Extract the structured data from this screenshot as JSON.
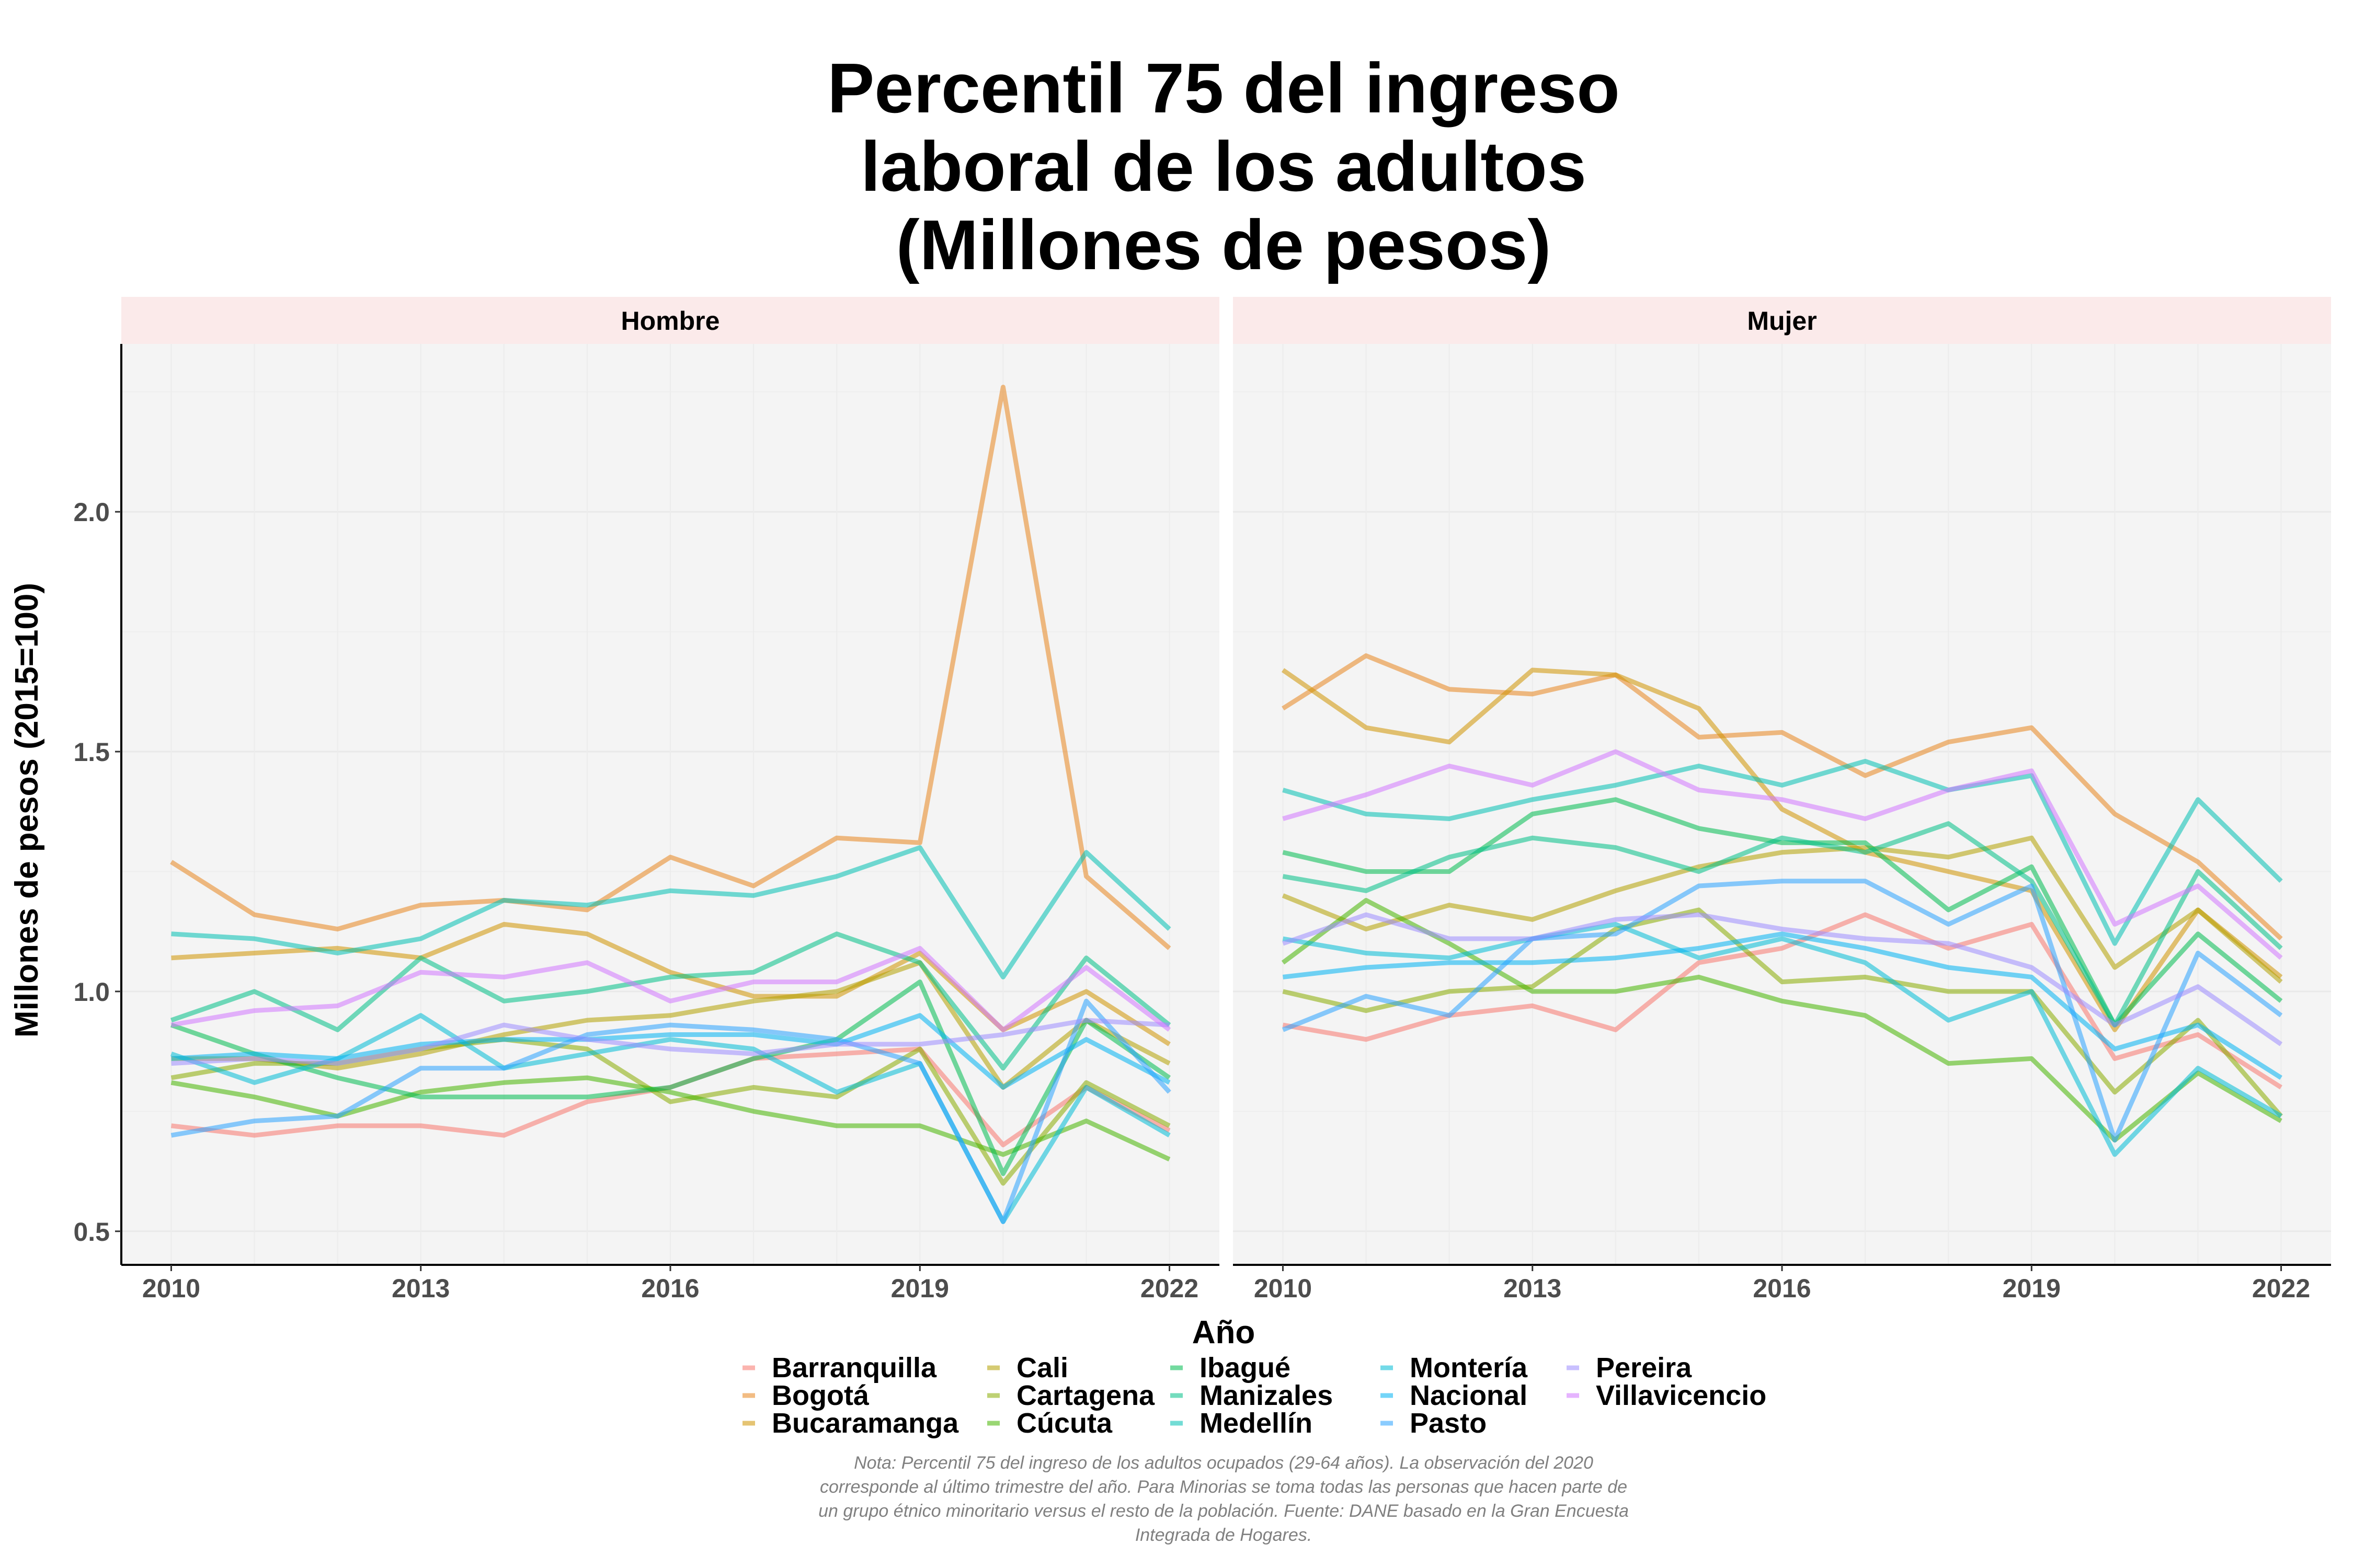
{
  "chart_data": {
    "type": "line",
    "title_lines": [
      "Percentil 75 del ingreso",
      "laboral de los adultos",
      "(Millones de pesos)"
    ],
    "xlabel": "Año",
    "ylabel": "Millones de pesos (2015=100)",
    "xlim": [
      2009.4,
      2022.6
    ],
    "ylim": [
      0.43,
      2.35
    ],
    "x_ticks": [
      2010,
      2013,
      2016,
      2019,
      2022
    ],
    "y_ticks": [
      0.5,
      1.0,
      1.5,
      2.0
    ],
    "y_tick_labels": [
      "0.5",
      "1.0",
      "1.5",
      "2.0"
    ],
    "x": [
      2010,
      2011,
      2012,
      2013,
      2014,
      2015,
      2016,
      2017,
      2018,
      2019,
      2020,
      2021,
      2022
    ],
    "legend_title": "",
    "legend_placement": "bottom",
    "note_lines": [
      "Nota: Percentil 75 del ingreso de los adultos ocupados (29-64 años). La observación del 2020",
      "corresponde al último trimestre del año. Para Minorias se toma todas las personas que hacen parte de",
      "un grupo étnico minoritario versus el resto de la población. Fuente: DANE basado en la Gran Encuesta",
      "Integrada de Hogares."
    ],
    "cities": [
      {
        "name": "Barranquilla",
        "color": "#F8766D"
      },
      {
        "name": "Bogotá",
        "color": "#E7851E"
      },
      {
        "name": "Bucaramanga",
        "color": "#D09400"
      },
      {
        "name": "Cali",
        "color": "#B2A100"
      },
      {
        "name": "Cartagena",
        "color": "#89AC00"
      },
      {
        "name": "Cúcuta",
        "color": "#45B500"
      },
      {
        "name": "Ibagué",
        "color": "#00BC51"
      },
      {
        "name": "Manizales",
        "color": "#00C087"
      },
      {
        "name": "Medellín",
        "color": "#00C0B2"
      },
      {
        "name": "Montería",
        "color": "#00BCD6"
      },
      {
        "name": "Nacional",
        "color": "#00B3F2"
      },
      {
        "name": "Pasto",
        "color": "#29A3FF"
      },
      {
        "name": "Pereira",
        "color": "#9C8DFF"
      },
      {
        "name": "Villavicencio",
        "color": "#D277FF"
      }
    ],
    "panels": [
      {
        "name": "Hombre",
        "series": [
          {
            "name": "Barranquilla",
            "values": [
              0.72,
              0.7,
              0.72,
              0.72,
              0.7,
              0.77,
              0.8,
              0.86,
              0.87,
              0.88,
              0.68,
              0.8,
              0.71
            ]
          },
          {
            "name": "Bogotá",
            "values": [
              1.27,
              1.16,
              1.13,
              1.18,
              1.19,
              1.17,
              1.28,
              1.22,
              1.32,
              1.31,
              2.26,
              1.24,
              1.09
            ]
          },
          {
            "name": "Bucaramanga",
            "values": [
              1.07,
              1.08,
              1.09,
              1.07,
              1.14,
              1.12,
              1.04,
              0.99,
              0.99,
              1.08,
              0.92,
              1.0,
              0.89
            ]
          },
          {
            "name": "Cali",
            "values": [
              0.86,
              0.86,
              0.84,
              0.87,
              0.91,
              0.94,
              0.95,
              0.98,
              1.0,
              1.06,
              0.8,
              0.94,
              0.85
            ]
          },
          {
            "name": "Cartagena",
            "values": [
              0.82,
              0.85,
              0.85,
              0.88,
              0.9,
              0.88,
              0.77,
              0.8,
              0.78,
              0.88,
              0.6,
              0.81,
              0.72
            ]
          },
          {
            "name": "Cúcuta",
            "values": [
              0.81,
              0.78,
              0.74,
              0.79,
              0.81,
              0.82,
              0.79,
              0.75,
              0.72,
              0.72,
              0.66,
              0.73,
              0.65
            ]
          },
          {
            "name": "Ibagué",
            "values": [
              0.93,
              0.87,
              0.82,
              0.78,
              0.78,
              0.78,
              0.8,
              0.86,
              0.9,
              1.02,
              0.62,
              0.94,
              0.82
            ]
          },
          {
            "name": "Manizales",
            "values": [
              0.94,
              1.0,
              0.92,
              1.07,
              0.98,
              1.0,
              1.03,
              1.04,
              1.12,
              1.06,
              0.84,
              1.07,
              0.93
            ]
          },
          {
            "name": "Medellín",
            "values": [
              1.12,
              1.11,
              1.08,
              1.11,
              1.19,
              1.18,
              1.21,
              1.2,
              1.24,
              1.3,
              1.03,
              1.29,
              1.13
            ]
          },
          {
            "name": "Montería",
            "values": [
              0.87,
              0.81,
              0.86,
              0.95,
              0.84,
              0.87,
              0.9,
              0.88,
              0.79,
              0.85,
              0.52,
              0.8,
              0.7
            ]
          },
          {
            "name": "Nacional",
            "values": [
              0.86,
              0.87,
              0.86,
              0.89,
              0.9,
              0.9,
              0.91,
              0.91,
              0.89,
              0.95,
              0.8,
              0.9,
              0.81
            ]
          },
          {
            "name": "Pasto",
            "values": [
              0.7,
              0.73,
              0.74,
              0.84,
              0.84,
              0.91,
              0.93,
              0.92,
              0.9,
              0.85,
              0.52,
              0.98,
              0.79
            ]
          },
          {
            "name": "Pereira",
            "values": [
              0.85,
              0.86,
              0.85,
              0.88,
              0.93,
              0.9,
              0.88,
              0.87,
              0.89,
              0.89,
              0.91,
              0.94,
              0.93
            ]
          },
          {
            "name": "Villavicencio",
            "values": [
              0.93,
              0.96,
              0.97,
              1.04,
              1.03,
              1.06,
              0.98,
              1.02,
              1.02,
              1.09,
              0.92,
              1.05,
              0.92
            ]
          }
        ]
      },
      {
        "name": "Mujer",
        "series": [
          {
            "name": "Barranquilla",
            "values": [
              0.93,
              0.9,
              0.95,
              0.97,
              0.92,
              1.06,
              1.09,
              1.16,
              1.09,
              1.14,
              0.86,
              0.91,
              0.8
            ]
          },
          {
            "name": "Bogotá",
            "values": [
              1.59,
              1.7,
              1.63,
              1.62,
              1.66,
              1.53,
              1.54,
              1.45,
              1.52,
              1.55,
              1.37,
              1.27,
              1.11
            ]
          },
          {
            "name": "Bucaramanga",
            "values": [
              1.67,
              1.55,
              1.52,
              1.67,
              1.66,
              1.59,
              1.38,
              1.29,
              1.25,
              1.21,
              0.92,
              1.17,
              1.03
            ]
          },
          {
            "name": "Cali",
            "values": [
              1.2,
              1.13,
              1.18,
              1.15,
              1.21,
              1.26,
              1.29,
              1.3,
              1.28,
              1.32,
              1.05,
              1.17,
              1.02
            ]
          },
          {
            "name": "Cartagena",
            "values": [
              1.0,
              0.96,
              1.0,
              1.01,
              1.13,
              1.17,
              1.02,
              1.03,
              1.0,
              1.0,
              0.79,
              0.94,
              0.74
            ]
          },
          {
            "name": "Cúcuta",
            "values": [
              1.06,
              1.19,
              1.1,
              1.0,
              1.0,
              1.03,
              0.98,
              0.95,
              0.85,
              0.86,
              0.69,
              0.83,
              0.73
            ]
          },
          {
            "name": "Ibagué",
            "values": [
              1.29,
              1.25,
              1.25,
              1.37,
              1.4,
              1.34,
              1.31,
              1.31,
              1.17,
              1.26,
              0.93,
              1.12,
              0.98
            ]
          },
          {
            "name": "Manizales",
            "values": [
              1.24,
              1.21,
              1.28,
              1.32,
              1.3,
              1.25,
              1.32,
              1.29,
              1.35,
              1.23,
              0.93,
              1.25,
              1.09
            ]
          },
          {
            "name": "Medellín",
            "values": [
              1.42,
              1.37,
              1.36,
              1.4,
              1.43,
              1.47,
              1.43,
              1.48,
              1.42,
              1.45,
              1.1,
              1.4,
              1.23
            ]
          },
          {
            "name": "Montería",
            "values": [
              1.11,
              1.08,
              1.07,
              1.11,
              1.14,
              1.07,
              1.11,
              1.06,
              0.94,
              1.0,
              0.66,
              0.84,
              0.74
            ]
          },
          {
            "name": "Nacional",
            "values": [
              1.03,
              1.05,
              1.06,
              1.06,
              1.07,
              1.09,
              1.12,
              1.09,
              1.05,
              1.03,
              0.88,
              0.93,
              0.82
            ]
          },
          {
            "name": "Pasto",
            "values": [
              0.92,
              0.99,
              0.95,
              1.11,
              1.12,
              1.22,
              1.23,
              1.23,
              1.14,
              1.22,
              0.69,
              1.08,
              0.95
            ]
          },
          {
            "name": "Pereira",
            "values": [
              1.1,
              1.16,
              1.11,
              1.11,
              1.15,
              1.16,
              1.13,
              1.11,
              1.1,
              1.05,
              0.93,
              1.01,
              0.89
            ]
          },
          {
            "name": "Villavicencio",
            "values": [
              1.36,
              1.41,
              1.47,
              1.43,
              1.5,
              1.42,
              1.4,
              1.36,
              1.42,
              1.46,
              1.14,
              1.22,
              1.07
            ]
          }
        ]
      }
    ]
  }
}
